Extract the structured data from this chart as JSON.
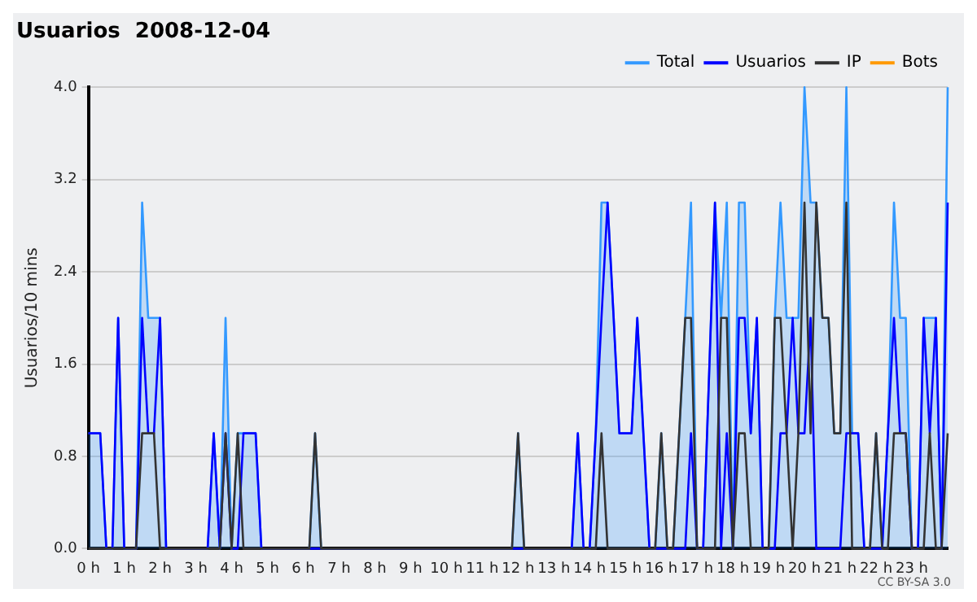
{
  "chart_data": {
    "type": "line",
    "title": "Usuarios  2008-12-04",
    "ylabel": "Usuarios/10 mins",
    "annotations": [
      "CC BY-SA 3.0"
    ],
    "x": [
      0,
      0.33,
      0.5,
      0.67,
      0.83,
      1.0,
      1.33,
      1.5,
      1.67,
      1.83,
      2.0,
      2.17,
      3.33,
      3.5,
      3.67,
      3.83,
      4.0,
      4.17,
      4.33,
      4.67,
      4.83,
      6.17,
      6.33,
      6.5,
      11.83,
      12.0,
      12.17,
      13.5,
      13.67,
      13.83,
      14.0,
      14.17,
      14.33,
      14.5,
      14.67,
      14.83,
      15.17,
      15.33,
      15.5,
      15.67,
      15.83,
      16.0,
      16.17,
      16.33,
      16.5,
      16.67,
      16.83,
      17.0,
      17.17,
      17.5,
      17.67,
      17.83,
      18.0,
      18.17,
      18.33,
      18.5,
      18.67,
      18.83,
      19.0,
      19.17,
      19.33,
      19.5,
      19.67,
      19.83,
      20.0,
      20.17,
      20.33,
      20.5,
      20.67,
      20.83,
      21.0,
      21.17,
      21.33,
      21.5,
      21.67,
      21.83,
      22.0,
      22.17,
      22.33,
      22.5,
      22.67,
      22.83,
      23.0,
      23.17,
      23.33,
      23.5,
      23.67,
      23.83,
      24.0
    ],
    "series": [
      {
        "name": "Total",
        "type": "area",
        "color": "#3399ff",
        "values": [
          1,
          1,
          0,
          0,
          2,
          0,
          0,
          3,
          2,
          2,
          2,
          0,
          0,
          1,
          0,
          2,
          0,
          1,
          1,
          1,
          0,
          0,
          1,
          0,
          0,
          1,
          0,
          0,
          1,
          0,
          0,
          1,
          3,
          3,
          2,
          1,
          1,
          2,
          1,
          0,
          0,
          1,
          0,
          0,
          1,
          2,
          3,
          0,
          0,
          3,
          2,
          3,
          0,
          3,
          3,
          1,
          2,
          0,
          0,
          2,
          3,
          2,
          2,
          2,
          4,
          3,
          3,
          2,
          2,
          1,
          1,
          4,
          1,
          1,
          0,
          0,
          1,
          0,
          1,
          3,
          2,
          2,
          0,
          0,
          2,
          2,
          2,
          0,
          4
        ]
      },
      {
        "name": "Usuarios",
        "type": "line",
        "color": "#0000ff",
        "values": [
          1,
          1,
          0,
          0,
          2,
          0,
          0,
          2,
          1,
          1,
          2,
          0,
          0,
          1,
          0,
          1,
          0,
          0,
          1,
          1,
          0,
          0,
          0,
          0,
          0,
          0,
          0,
          0,
          1,
          0,
          0,
          1,
          2,
          3,
          2,
          1,
          1,
          2,
          1,
          0,
          0,
          0,
          0,
          0,
          0,
          0,
          1,
          0,
          0,
          3,
          0,
          1,
          0,
          2,
          2,
          1,
          2,
          0,
          0,
          0,
          1,
          1,
          2,
          1,
          1,
          2,
          0,
          0,
          0,
          0,
          0,
          1,
          1,
          1,
          0,
          0,
          0,
          0,
          1,
          2,
          1,
          1,
          0,
          0,
          2,
          1,
          2,
          0,
          3
        ]
      },
      {
        "name": "IP",
        "type": "line",
        "color": "#333333",
        "values": [
          0,
          0,
          0,
          0,
          0,
          0,
          0,
          1,
          1,
          1,
          0,
          0,
          0,
          0,
          0,
          1,
          0,
          1,
          0,
          0,
          0,
          0,
          1,
          0,
          0,
          1,
          0,
          0,
          0,
          0,
          0,
          0,
          1,
          0,
          0,
          0,
          0,
          0,
          0,
          0,
          0,
          1,
          0,
          0,
          1,
          2,
          2,
          0,
          0,
          0,
          2,
          2,
          0,
          1,
          1,
          0,
          0,
          0,
          0,
          2,
          2,
          1,
          0,
          1,
          3,
          1,
          3,
          2,
          2,
          1,
          1,
          3,
          0,
          0,
          0,
          0,
          1,
          0,
          0,
          1,
          1,
          1,
          0,
          0,
          0,
          1,
          0,
          0,
          1
        ]
      },
      {
        "name": "Bots",
        "type": "line",
        "color": "#ff9900",
        "values": [
          null,
          null,
          null,
          null,
          null,
          null,
          null,
          null,
          null,
          null,
          null,
          null,
          null,
          null,
          null,
          null,
          null,
          null,
          null,
          null,
          null,
          null,
          null,
          null,
          null,
          null,
          null,
          null,
          null,
          null,
          null,
          null,
          null,
          null,
          null,
          null,
          null,
          null,
          null,
          null,
          null,
          null,
          null,
          null,
          null,
          null,
          null,
          null,
          null,
          null,
          null,
          null,
          null,
          null,
          null,
          null,
          null,
          null,
          null,
          null,
          null,
          null,
          null,
          null,
          null,
          null,
          null,
          null,
          null,
          null,
          null,
          null,
          null,
          null,
          null,
          null,
          null,
          null,
          null,
          null,
          null,
          null,
          null,
          null,
          null,
          null,
          null,
          null,
          null
        ]
      }
    ],
    "xlim": [
      0,
      24
    ],
    "xticks": [
      {
        "value": 0,
        "label": "0 h"
      },
      {
        "value": 1,
        "label": "1 h"
      },
      {
        "value": 2,
        "label": "2 h"
      },
      {
        "value": 3,
        "label": "3 h"
      },
      {
        "value": 4,
        "label": "4 h"
      },
      {
        "value": 5,
        "label": "5 h"
      },
      {
        "value": 6,
        "label": "6 h"
      },
      {
        "value": 7,
        "label": "7 h"
      },
      {
        "value": 8,
        "label": "8 h"
      },
      {
        "value": 9,
        "label": "9 h"
      },
      {
        "value": 10,
        "label": "10 h"
      },
      {
        "value": 11,
        "label": "11 h"
      },
      {
        "value": 12,
        "label": "12 h"
      },
      {
        "value": 13,
        "label": "13 h"
      },
      {
        "value": 14,
        "label": "14 h"
      },
      {
        "value": 15,
        "label": "15 h"
      },
      {
        "value": 16,
        "label": "16 h"
      },
      {
        "value": 17,
        "label": "17 h"
      },
      {
        "value": 18,
        "label": "18 h"
      },
      {
        "value": 19,
        "label": "19 h"
      },
      {
        "value": 20,
        "label": "20 h"
      },
      {
        "value": 21,
        "label": "21 h"
      },
      {
        "value": 22,
        "label": "22 h"
      },
      {
        "value": 23,
        "label": "23 h"
      }
    ],
    "ylim": [
      0,
      4
    ],
    "yticks": [
      {
        "value": 0,
        "label": "0.0"
      },
      {
        "value": 0.8,
        "label": "0.8"
      },
      {
        "value": 1.6,
        "label": "1.6"
      },
      {
        "value": 2.4,
        "label": "2.4"
      },
      {
        "value": 3.2,
        "label": "3.2"
      },
      {
        "value": 4,
        "label": "4.0"
      }
    ],
    "grid": "y",
    "legend": "top right",
    "marker": "none",
    "line_style": "solid"
  }
}
